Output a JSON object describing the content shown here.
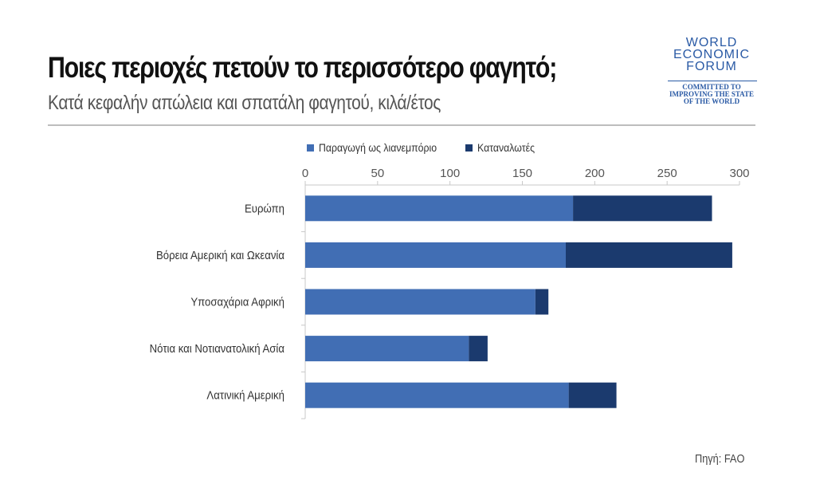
{
  "header": {
    "title": "Ποιες περιοχές πετούν το περισσότερο φαγητό;",
    "subtitle": "Κατά κεφαλήν απώλεια και σπατάλη φαγητού, κιλά/έτος"
  },
  "logo": {
    "line1": "WORLD",
    "line2": "ECONOMIC",
    "line3": "FORUM",
    "tagline1": "COMMITTED TO",
    "tagline2": "IMPROVING THE STATE",
    "tagline3": "OF THE WORLD"
  },
  "source": "Πηγή: FAO",
  "colors": {
    "production": "#416eb4",
    "consumers": "#1b3a6e",
    "axis": "#c8c8c8",
    "brand": "#2a5aa5"
  },
  "chart_data": {
    "type": "bar",
    "orientation": "horizontal",
    "stacked": true,
    "title": "Ποιες περιοχές πετούν το περισσότερο φαγητό;",
    "subtitle": "Κατά κεφαλήν απώλεια και σπατάλη φαγητού, κιλά/έτος",
    "categories": [
      "Ευρώπη",
      "Βόρεια Αμερική και Ωκεανία",
      "Υποσαχάρια Αφρική",
      "Νότια και Νοτιανατολική Ασία",
      "Λατινική Αμερική"
    ],
    "series": [
      {
        "name": "Παραγωγή ως λιανεμπόριο",
        "values": [
          185,
          180,
          159,
          113,
          182
        ]
      },
      {
        "name": "Καταναλωτές",
        "values": [
          96,
          115,
          9,
          13,
          33
        ]
      }
    ],
    "xlim": [
      0,
      300
    ],
    "xticks": [
      0,
      50,
      100,
      150,
      200,
      250,
      300
    ],
    "legend_position": "top",
    "grid": false
  }
}
